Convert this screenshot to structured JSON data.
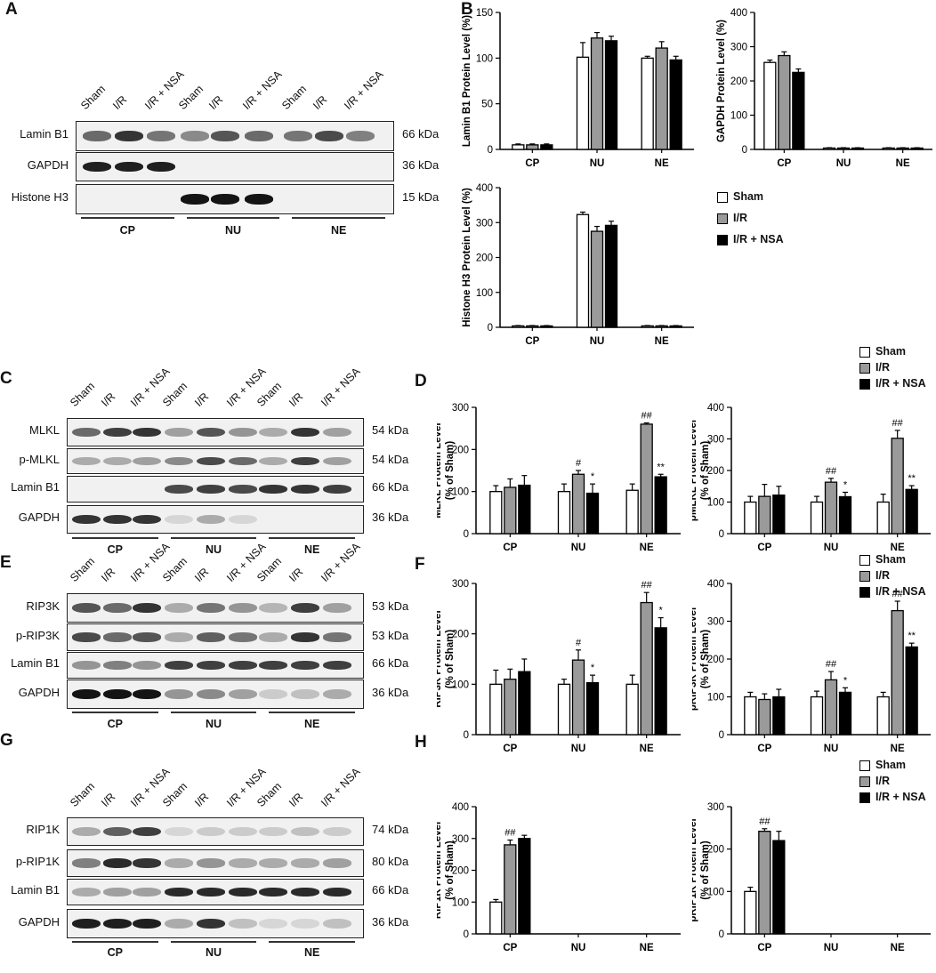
{
  "panels": {
    "A": "A",
    "B": "B",
    "C": "C",
    "D": "D",
    "E": "E",
    "F": "F",
    "G": "G",
    "H": "H"
  },
  "lanes": [
    "Sham",
    "I/R",
    "I/R + NSA",
    "Sham",
    "I/R",
    "I/R + NSA",
    "Sham",
    "I/R",
    "I/R + NSA"
  ],
  "groups": [
    "CP",
    "NU",
    "NE"
  ],
  "blots": {
    "A": [
      {
        "label": "Lamin B1",
        "kda": "66 kDa"
      },
      {
        "label": "GAPDH",
        "kda": "36 kDa"
      },
      {
        "label": "Histone H3",
        "kda": "15 kDa"
      }
    ],
    "C": [
      {
        "label": "MLKL",
        "kda": "54 kDa"
      },
      {
        "label": "p-MLKL",
        "kda": "54 kDa"
      },
      {
        "label": "Lamin B1",
        "kda": "66 kDa"
      },
      {
        "label": "GAPDH",
        "kda": "36 kDa"
      }
    ],
    "E": [
      {
        "label": "RIP3K",
        "kda": "53 kDa"
      },
      {
        "label": "p-RIP3K",
        "kda": "53 kDa"
      },
      {
        "label": "Lamin B1",
        "kda": "66 kDa"
      },
      {
        "label": "GAPDH",
        "kda": "36 kDa"
      }
    ],
    "G": [
      {
        "label": "RIP1K",
        "kda": "74 kDa"
      },
      {
        "label": "p-RIP1K",
        "kda": "80 kDa"
      },
      {
        "label": "Lamin B1",
        "kda": "66 kDa"
      },
      {
        "label": "GAPDH",
        "kda": "36 kDa"
      }
    ]
  },
  "legend": [
    "Sham",
    "I/R",
    "I/R + NSA"
  ],
  "colors": {
    "sham": "#ffffff",
    "ir": "#9a9a9a",
    "nsa": "#000000"
  },
  "chart_data": [
    {
      "id": "B1",
      "type": "bar",
      "ylabel": "Lamin B1 Protein Level (%)",
      "ylim": [
        0,
        150
      ],
      "yticks": [
        0,
        50,
        100,
        150
      ],
      "categories": [
        "CP",
        "NU",
        "NE"
      ],
      "series": [
        {
          "name": "Sham",
          "values": [
            5,
            101,
            100
          ],
          "errors": [
            1,
            16,
            2
          ]
        },
        {
          "name": "I/R",
          "values": [
            5,
            122,
            111
          ],
          "errors": [
            1,
            6,
            7
          ]
        },
        {
          "name": "I/R + NSA",
          "values": [
            5,
            119,
            98
          ],
          "errors": [
            1,
            5,
            4
          ]
        }
      ],
      "annotations": [
        [],
        [],
        []
      ]
    },
    {
      "id": "B2",
      "type": "bar",
      "ylabel": "GAPDH Protein Level (%)",
      "ylim": [
        0,
        400
      ],
      "yticks": [
        0,
        100,
        200,
        300,
        400
      ],
      "categories": [
        "CP",
        "NU",
        "NE"
      ],
      "series": [
        {
          "name": "Sham",
          "values": [
            254,
            4,
            4
          ],
          "errors": [
            7,
            1,
            1
          ]
        },
        {
          "name": "I/R",
          "values": [
            274,
            4,
            4
          ],
          "errors": [
            11,
            1,
            1
          ]
        },
        {
          "name": "I/R + NSA",
          "values": [
            225,
            4,
            4
          ],
          "errors": [
            10,
            1,
            1
          ]
        }
      ],
      "annotations": [
        [],
        [],
        []
      ]
    },
    {
      "id": "B3",
      "type": "bar",
      "ylabel": "Histone H3 Protein Level (%)",
      "ylim": [
        0,
        400
      ],
      "yticks": [
        0,
        100,
        200,
        300,
        400
      ],
      "categories": [
        "CP",
        "NU",
        "NE"
      ],
      "series": [
        {
          "name": "Sham",
          "values": [
            4,
            323,
            4
          ],
          "errors": [
            1,
            7,
            1
          ]
        },
        {
          "name": "I/R",
          "values": [
            4,
            275,
            4
          ],
          "errors": [
            1,
            14,
            1
          ]
        },
        {
          "name": "I/R + NSA",
          "values": [
            4,
            292,
            4
          ],
          "errors": [
            1,
            12,
            1
          ]
        }
      ],
      "annotations": [
        [],
        [],
        []
      ]
    },
    {
      "id": "D1",
      "type": "bar",
      "ylabel": "MLKL Protein Level\n(% of Sham)",
      "ylim": [
        0,
        300
      ],
      "yticks": [
        0,
        100,
        200,
        300
      ],
      "categories": [
        "CP",
        "NU",
        "NE"
      ],
      "series": [
        {
          "name": "Sham",
          "values": [
            100,
            100,
            103
          ],
          "errors": [
            14,
            18,
            15
          ]
        },
        {
          "name": "I/R",
          "values": [
            110,
            141,
            260
          ],
          "errors": [
            20,
            9,
            3
          ]
        },
        {
          "name": "I/R + NSA",
          "values": [
            115,
            96,
            135
          ],
          "errors": [
            23,
            22,
            6
          ]
        }
      ],
      "annotations": [
        [
          "",
          "",
          ""
        ],
        [
          "",
          "#",
          "*"
        ],
        [
          "",
          "##",
          "**"
        ]
      ]
    },
    {
      "id": "D2",
      "type": "bar",
      "ylabel": "pMLKL Protein Level\n(% of Sham)",
      "ylim": [
        0,
        400
      ],
      "yticks": [
        0,
        100,
        200,
        300,
        400
      ],
      "categories": [
        "CP",
        "NU",
        "NE"
      ],
      "series": [
        {
          "name": "Sham",
          "values": [
            100,
            100,
            100
          ],
          "errors": [
            18,
            18,
            25
          ]
        },
        {
          "name": "I/R",
          "values": [
            118,
            163,
            302
          ],
          "errors": [
            38,
            12,
            25
          ]
        },
        {
          "name": "I/R + NSA",
          "values": [
            122,
            117,
            140
          ],
          "errors": [
            28,
            14,
            12
          ]
        }
      ],
      "annotations": [
        [
          "",
          "",
          ""
        ],
        [
          "",
          "##",
          "*"
        ],
        [
          "",
          "##",
          "**"
        ]
      ]
    },
    {
      "id": "F1",
      "type": "bar",
      "ylabel": "RIP3K Protein Level\n(% of Sham)",
      "ylim": [
        0,
        300
      ],
      "yticks": [
        0,
        100,
        200,
        300
      ],
      "categories": [
        "CP",
        "NU",
        "NE"
      ],
      "series": [
        {
          "name": "Sham",
          "values": [
            100,
            100,
            100
          ],
          "errors": [
            28,
            10,
            18
          ]
        },
        {
          "name": "I/R",
          "values": [
            110,
            148,
            262
          ],
          "errors": [
            20,
            20,
            20
          ]
        },
        {
          "name": "I/R + NSA",
          "values": [
            125,
            103,
            212
          ],
          "errors": [
            25,
            15,
            20
          ]
        }
      ],
      "annotations": [
        [
          "",
          "",
          ""
        ],
        [
          "",
          "#",
          "*"
        ],
        [
          "",
          "##",
          "*"
        ]
      ]
    },
    {
      "id": "F2",
      "type": "bar",
      "ylabel": "pRIP3K Protein Level\n(% of Sham)",
      "ylim": [
        0,
        400
      ],
      "yticks": [
        0,
        100,
        200,
        300,
        400
      ],
      "categories": [
        "CP",
        "NU",
        "NE"
      ],
      "series": [
        {
          "name": "Sham",
          "values": [
            100,
            100,
            100
          ],
          "errors": [
            12,
            15,
            12
          ]
        },
        {
          "name": "I/R",
          "values": [
            93,
            145,
            328
          ],
          "errors": [
            15,
            22,
            25
          ]
        },
        {
          "name": "I/R + NSA",
          "values": [
            100,
            112,
            232
          ],
          "errors": [
            20,
            12,
            10
          ]
        }
      ],
      "annotations": [
        [
          "",
          "",
          ""
        ],
        [
          "",
          "##",
          "*"
        ],
        [
          "",
          "##",
          "**"
        ]
      ]
    },
    {
      "id": "H1",
      "type": "bar",
      "ylabel": "RIP1K Protein Level\n(% of Sham)",
      "ylim": [
        0,
        400
      ],
      "yticks": [
        0,
        100,
        200,
        300,
        400
      ],
      "categories": [
        "CP",
        "NU",
        "NE"
      ],
      "series": [
        {
          "name": "Sham",
          "values": [
            100,
            null,
            null
          ],
          "errors": [
            8,
            0,
            0
          ]
        },
        {
          "name": "I/R",
          "values": [
            280,
            null,
            null
          ],
          "errors": [
            15,
            0,
            0
          ]
        },
        {
          "name": "I/R + NSA",
          "values": [
            300,
            null,
            null
          ],
          "errors": [
            10,
            0,
            0
          ]
        }
      ],
      "annotations": [
        [
          "",
          "##",
          ""
        ],
        [
          "",
          "",
          ""
        ],
        [
          "",
          "",
          ""
        ]
      ]
    },
    {
      "id": "H2",
      "type": "bar",
      "ylabel": "pRIP1K Protein Level\n(% of Sham)",
      "ylim": [
        0,
        300
      ],
      "yticks": [
        0,
        100,
        200,
        300
      ],
      "categories": [
        "CP",
        "NU",
        "NE"
      ],
      "series": [
        {
          "name": "Sham",
          "values": [
            100,
            null,
            null
          ],
          "errors": [
            10,
            0,
            0
          ]
        },
        {
          "name": "I/R",
          "values": [
            242,
            null,
            null
          ],
          "errors": [
            6,
            0,
            0
          ]
        },
        {
          "name": "I/R + NSA",
          "values": [
            220,
            null,
            null
          ],
          "errors": [
            22,
            0,
            0
          ]
        }
      ],
      "annotations": [
        [
          "",
          "##",
          ""
        ],
        [
          "",
          "",
          ""
        ],
        [
          "",
          "",
          ""
        ]
      ]
    }
  ]
}
